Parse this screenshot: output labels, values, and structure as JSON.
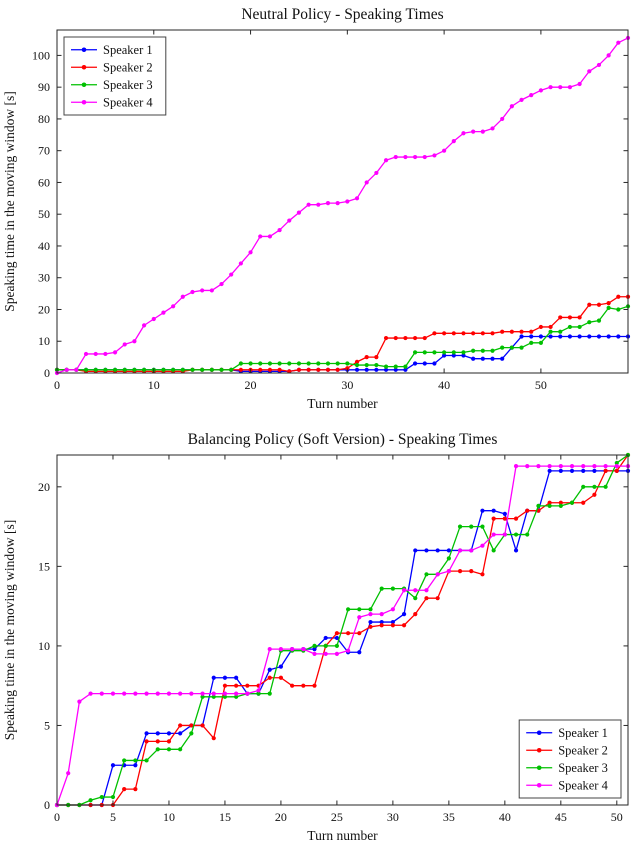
{
  "page": {
    "background": "#ffffff"
  },
  "chart_data": [
    {
      "type": "line",
      "title": "Neutral Policy - Speaking Times",
      "xlabel": "Turn number",
      "ylabel": "Speaking time in the moving window [s]",
      "xlim": [
        0,
        59
      ],
      "ylim": [
        0,
        108
      ],
      "xticks": [
        0,
        10,
        20,
        30,
        40,
        50
      ],
      "yticks": [
        0,
        10,
        20,
        30,
        40,
        50,
        60,
        70,
        80,
        90,
        100
      ],
      "grid": false,
      "legend_position": "top-left",
      "x": [
        0,
        1,
        2,
        3,
        4,
        5,
        6,
        7,
        8,
        9,
        10,
        11,
        12,
        13,
        14,
        15,
        16,
        17,
        18,
        19,
        20,
        21,
        22,
        23,
        24,
        25,
        26,
        27,
        28,
        29,
        30,
        31,
        32,
        33,
        34,
        35,
        36,
        37,
        38,
        39,
        40,
        41,
        42,
        43,
        44,
        45,
        46,
        47,
        48,
        49,
        50,
        51,
        52,
        53,
        54,
        55,
        56,
        57,
        58,
        59
      ],
      "series": [
        {
          "name": "Speaker 1",
          "color": "#0000FF",
          "values": [
            1,
            1,
            1,
            1,
            1,
            1,
            1,
            1,
            1,
            1,
            1,
            1,
            1,
            1,
            1,
            1,
            1,
            1,
            1,
            0.5,
            0.5,
            0.5,
            0.5,
            0.5,
            0.5,
            1,
            1,
            1,
            1,
            1,
            1,
            1,
            1,
            1,
            1,
            1,
            1,
            3,
            3,
            3,
            5.5,
            5.5,
            5.5,
            4.5,
            4.5,
            4.5,
            4.5,
            8,
            11.5,
            11.5,
            11.5,
            11.5,
            11.5,
            11.5,
            11.5,
            11.5,
            11.5,
            11.5,
            11.5,
            11.5
          ]
        },
        {
          "name": "Speaker 2",
          "color": "#FF0000",
          "values": [
            1,
            1,
            1,
            0.5,
            0.5,
            0.5,
            0.5,
            0.5,
            0.5,
            0.5,
            0.5,
            0.5,
            0.5,
            0.5,
            1,
            1,
            1,
            1,
            1,
            1,
            1,
            1,
            1,
            1,
            0.5,
            1,
            1,
            1,
            1,
            1,
            1.5,
            3.5,
            5,
            5,
            11,
            11,
            11,
            11,
            11,
            12.5,
            12.5,
            12.5,
            12.5,
            12.5,
            12.5,
            12.5,
            13,
            13,
            13,
            13,
            14.5,
            14.5,
            17.5,
            17.5,
            17.5,
            21.5,
            21.5,
            22,
            24,
            24
          ]
        },
        {
          "name": "Speaker 3",
          "color": "#00C000",
          "values": [
            1,
            1,
            1,
            1,
            1,
            1,
            1,
            1,
            1,
            1,
            1,
            1,
            1,
            1,
            1,
            1,
            1,
            1,
            1,
            3,
            3,
            3,
            3,
            3,
            3,
            3,
            3,
            3,
            3,
            3,
            3,
            2.5,
            2.5,
            2.5,
            2,
            2,
            2,
            6.5,
            6.5,
            6.5,
            6.5,
            6.5,
            6.5,
            7,
            7,
            7,
            8,
            8,
            8,
            9.5,
            9.5,
            13,
            13,
            14.5,
            14.5,
            16,
            16.5,
            20.5,
            20,
            21
          ]
        },
        {
          "name": "Speaker 4",
          "color": "#FF00FF",
          "values": [
            0,
            1,
            1,
            6,
            6,
            6,
            6.5,
            9,
            10,
            15,
            17,
            19,
            21,
            24,
            25.5,
            26,
            26,
            28,
            31,
            34.5,
            38,
            43,
            43,
            45,
            48,
            50.5,
            53,
            53,
            53.5,
            53.5,
            54,
            55,
            60,
            63,
            67,
            68,
            68,
            68,
            68,
            68.5,
            70,
            73,
            75.5,
            76,
            76,
            77,
            80,
            84,
            86,
            87.5,
            89,
            90,
            90,
            90,
            91,
            95,
            97,
            100,
            104,
            105.5
          ]
        }
      ]
    },
    {
      "type": "line",
      "title": "Balancing Policy (Soft Version) - Speaking Times",
      "xlabel": "Turn number",
      "ylabel": "Speaking time in the moving window [s]",
      "xlim": [
        0,
        51
      ],
      "ylim": [
        0,
        22
      ],
      "xticks": [
        0,
        5,
        10,
        15,
        20,
        25,
        30,
        35,
        40,
        45,
        50
      ],
      "yticks": [
        0,
        5,
        10,
        15,
        20
      ],
      "grid": false,
      "legend_position": "bottom-right",
      "x": [
        0,
        1,
        2,
        3,
        4,
        5,
        6,
        7,
        8,
        9,
        10,
        11,
        12,
        13,
        14,
        15,
        16,
        17,
        18,
        19,
        20,
        21,
        22,
        23,
        24,
        25,
        26,
        27,
        28,
        29,
        30,
        31,
        32,
        33,
        34,
        35,
        36,
        37,
        38,
        39,
        40,
        41,
        42,
        43,
        44,
        45,
        46,
        47,
        48,
        49,
        50,
        51
      ],
      "series": [
        {
          "name": "Speaker 1",
          "color": "#0000FF",
          "values": [
            0,
            0,
            0,
            0,
            0,
            2.5,
            2.5,
            2.5,
            4.5,
            4.5,
            4.5,
            4.5,
            5,
            5,
            8,
            8,
            8,
            7,
            7,
            8.5,
            8.7,
            9.8,
            9.8,
            9.8,
            10.5,
            10.5,
            9.6,
            9.6,
            11.5,
            11.5,
            11.5,
            12,
            16,
            16,
            16,
            16,
            16,
            16,
            18.5,
            18.5,
            18.3,
            16,
            18.5,
            18.5,
            21,
            21,
            21,
            21,
            21,
            21,
            21,
            21
          ]
        },
        {
          "name": "Speaker 2",
          "color": "#FF0000",
          "values": [
            0,
            0,
            0,
            0,
            0,
            0,
            1,
            1,
            4,
            4,
            4,
            5,
            5,
            5,
            4.2,
            7.5,
            7.5,
            7.5,
            7.5,
            8,
            8,
            7.5,
            7.5,
            7.5,
            10,
            10.8,
            10.8,
            10.8,
            11.2,
            11.3,
            11.3,
            11.3,
            12,
            13,
            13,
            14.7,
            14.7,
            14.7,
            14.5,
            18,
            18,
            18,
            18.5,
            18.5,
            19,
            19,
            19,
            19,
            19.5,
            21,
            21,
            22
          ]
        },
        {
          "name": "Speaker 3",
          "color": "#00C000",
          "values": [
            0,
            0,
            0,
            0.3,
            0.5,
            0.5,
            2.8,
            2.8,
            2.8,
            3.5,
            3.5,
            3.5,
            4.5,
            6.8,
            6.8,
            6.8,
            6.8,
            7,
            7,
            7,
            9.7,
            9.7,
            9.7,
            10,
            10,
            10,
            12.3,
            12.3,
            12.3,
            13.6,
            13.6,
            13.6,
            13,
            14.5,
            14.5,
            15.5,
            17.5,
            17.5,
            17.5,
            16,
            17,
            17,
            17,
            18.8,
            18.8,
            18.8,
            19,
            20,
            20,
            20,
            21.5,
            22
          ]
        },
        {
          "name": "Speaker 4",
          "color": "#FF00FF",
          "values": [
            0,
            2,
            6.5,
            7,
            7,
            7,
            7,
            7,
            7,
            7,
            7,
            7,
            7,
            7,
            7,
            7,
            7,
            7,
            7.2,
            9.8,
            9.8,
            9.8,
            9.8,
            9.5,
            9.5,
            9.5,
            9.7,
            11.8,
            12,
            12,
            12.3,
            13.5,
            13.5,
            13.5,
            14.5,
            14.7,
            16,
            16,
            16.3,
            17,
            17,
            21.3,
            21.3,
            21.3,
            21.3,
            21.3,
            21.3,
            21.3,
            21.3,
            21.3,
            21.3,
            21.3
          ]
        }
      ]
    }
  ],
  "style": {
    "axis_color": "#262626",
    "text_color": "#111111",
    "legend_border": "#444444",
    "legend_background": "#ffffff"
  }
}
